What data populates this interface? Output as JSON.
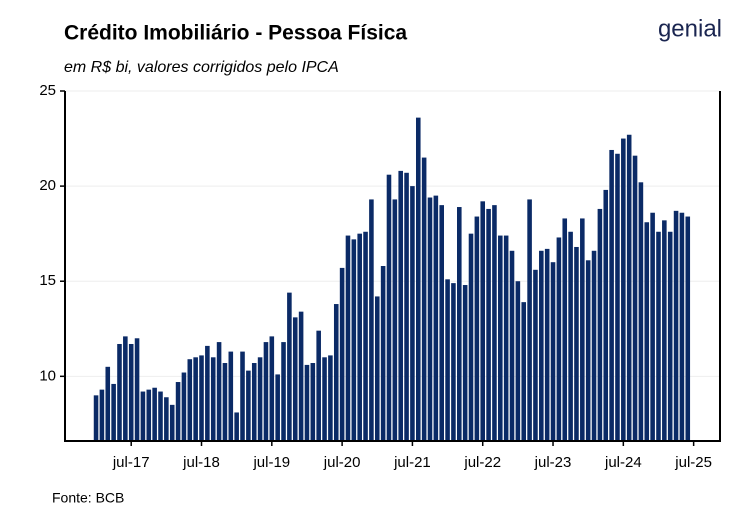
{
  "chart_data": {
    "type": "bar",
    "title": "Crédito Imobiliário - Pessoa Física",
    "subtitle": "em R$ bi, valores corrigidos pelo IPCA",
    "source": "Fonte: BCB",
    "logo": "genial",
    "color": "#0b2a66",
    "values": [
      9.0,
      9.3,
      10.5,
      9.6,
      11.7,
      12.1,
      11.7,
      12.0,
      9.2,
      9.3,
      9.4,
      9.2,
      8.9,
      8.5,
      9.7,
      10.2,
      10.9,
      11.0,
      11.1,
      11.6,
      11.0,
      11.8,
      10.7,
      11.3,
      8.1,
      11.3,
      10.3,
      10.7,
      11.0,
      11.8,
      12.1,
      10.1,
      11.8,
      14.4,
      13.1,
      13.4,
      10.6,
      10.7,
      12.4,
      11.0,
      11.1,
      13.8,
      15.7,
      17.4,
      17.2,
      17.5,
      17.6,
      19.3,
      14.2,
      15.8,
      20.6,
      19.3,
      20.8,
      20.7,
      20.0,
      23.6,
      21.5,
      19.4,
      19.5,
      19.0,
      15.1,
      14.9,
      18.9,
      14.8,
      17.5,
      18.4,
      19.2,
      18.8,
      19.0,
      17.4,
      17.4,
      16.6,
      15.0,
      13.9,
      19.3,
      15.6,
      16.6,
      16.7,
      16.0,
      17.3,
      18.3,
      17.6,
      16.8,
      18.3,
      16.1,
      16.6,
      18.8,
      19.8,
      21.9,
      21.7,
      22.5,
      22.7,
      21.6,
      20.2,
      18.1,
      18.6,
      17.6,
      18.2,
      17.6,
      18.7,
      18.6,
      18.4
    ],
    "xlim": [
      -5.3,
      106.5
    ],
    "xticks": [
      {
        "value": 6,
        "label": "jul-17"
      },
      {
        "value": 18,
        "label": "jul-18"
      },
      {
        "value": 30,
        "label": "jul-19"
      },
      {
        "value": 42,
        "label": "jul-20"
      },
      {
        "value": 54,
        "label": "jul-21"
      },
      {
        "value": 66,
        "label": "jul-22"
      },
      {
        "value": 78,
        "label": "jul-23"
      },
      {
        "value": 90,
        "label": "jul-24"
      },
      {
        "value": 102,
        "label": "jul-25"
      }
    ],
    "ylim": [
      6.6,
      25
    ],
    "yticks": [
      10,
      15,
      20,
      25
    ],
    "grid": true
  }
}
